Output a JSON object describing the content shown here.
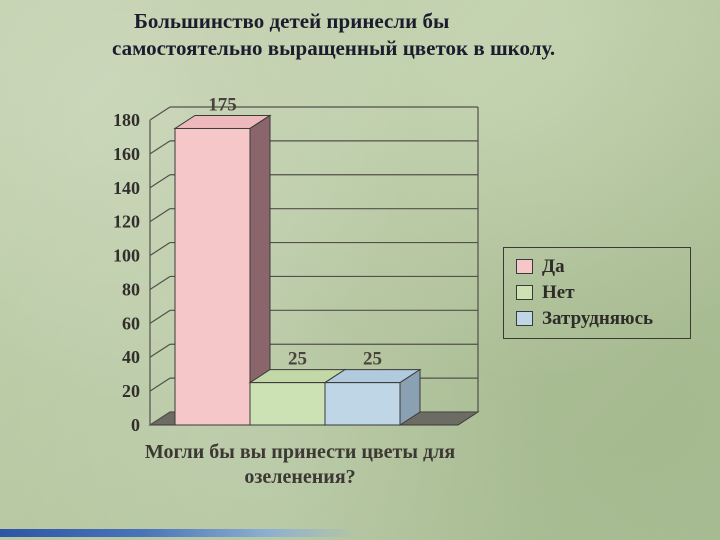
{
  "slide": {
    "title": "Большинство детей принесли бы самостоятельно выращенный цветок в школу."
  },
  "chart_data": {
    "type": "bar",
    "categories": [
      "Да",
      "Нет",
      "Затрудняюсь"
    ],
    "values": [
      175,
      25,
      25
    ],
    "value_labels": [
      "175",
      "25",
      "25"
    ],
    "xlabel": "Могли бы вы принести цветы для озеленения?",
    "ylabel": "",
    "ylim": [
      0,
      180
    ],
    "yticks": [
      0,
      20,
      40,
      60,
      80,
      100,
      120,
      140,
      160,
      180
    ],
    "grid": true,
    "style": "3d-bar",
    "legend": {
      "position": "right",
      "entries": [
        "Да",
        "Нет",
        "Затрудняюсь"
      ]
    },
    "colors": {
      "front": [
        "#f6c7c8",
        "#cde2b4",
        "#bfd6e7"
      ],
      "top": [
        "#edb9bc",
        "#c2d8a6",
        "#b1cadd"
      ],
      "side": [
        "#8a656b",
        "#93a87b",
        "#8aa0b3"
      ],
      "axis": "#3a3a38",
      "grid": "#52504a",
      "floor": "#6c6c64"
    }
  }
}
